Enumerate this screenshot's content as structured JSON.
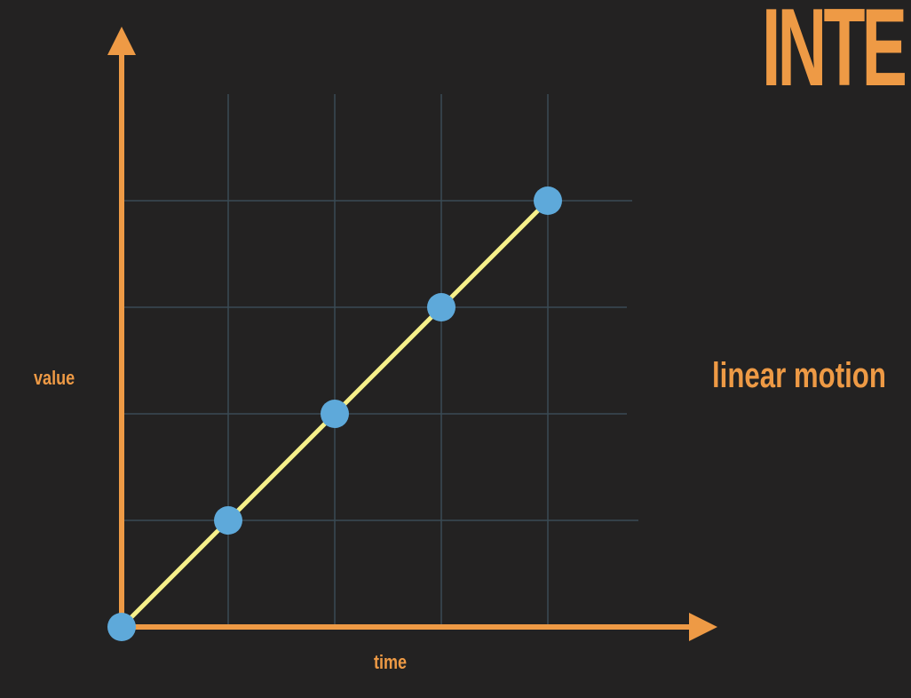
{
  "slide": {
    "title": "INTE",
    "subtitle": "linear motion"
  },
  "colors": {
    "background": "#232222",
    "accent": "#ee9a45",
    "grid": "#3a4a55",
    "line": "#f6f08a",
    "point": "#5ea9da"
  },
  "chart_data": {
    "type": "line",
    "title": "",
    "xlabel": "time",
    "ylabel": "value",
    "grid": true,
    "xlim": [
      0,
      5.5
    ],
    "ylim": [
      0,
      5.5
    ],
    "series": [
      {
        "x": [
          0,
          1,
          2,
          3,
          4
        ],
        "values": [
          0,
          1,
          2,
          3,
          4
        ]
      }
    ]
  }
}
